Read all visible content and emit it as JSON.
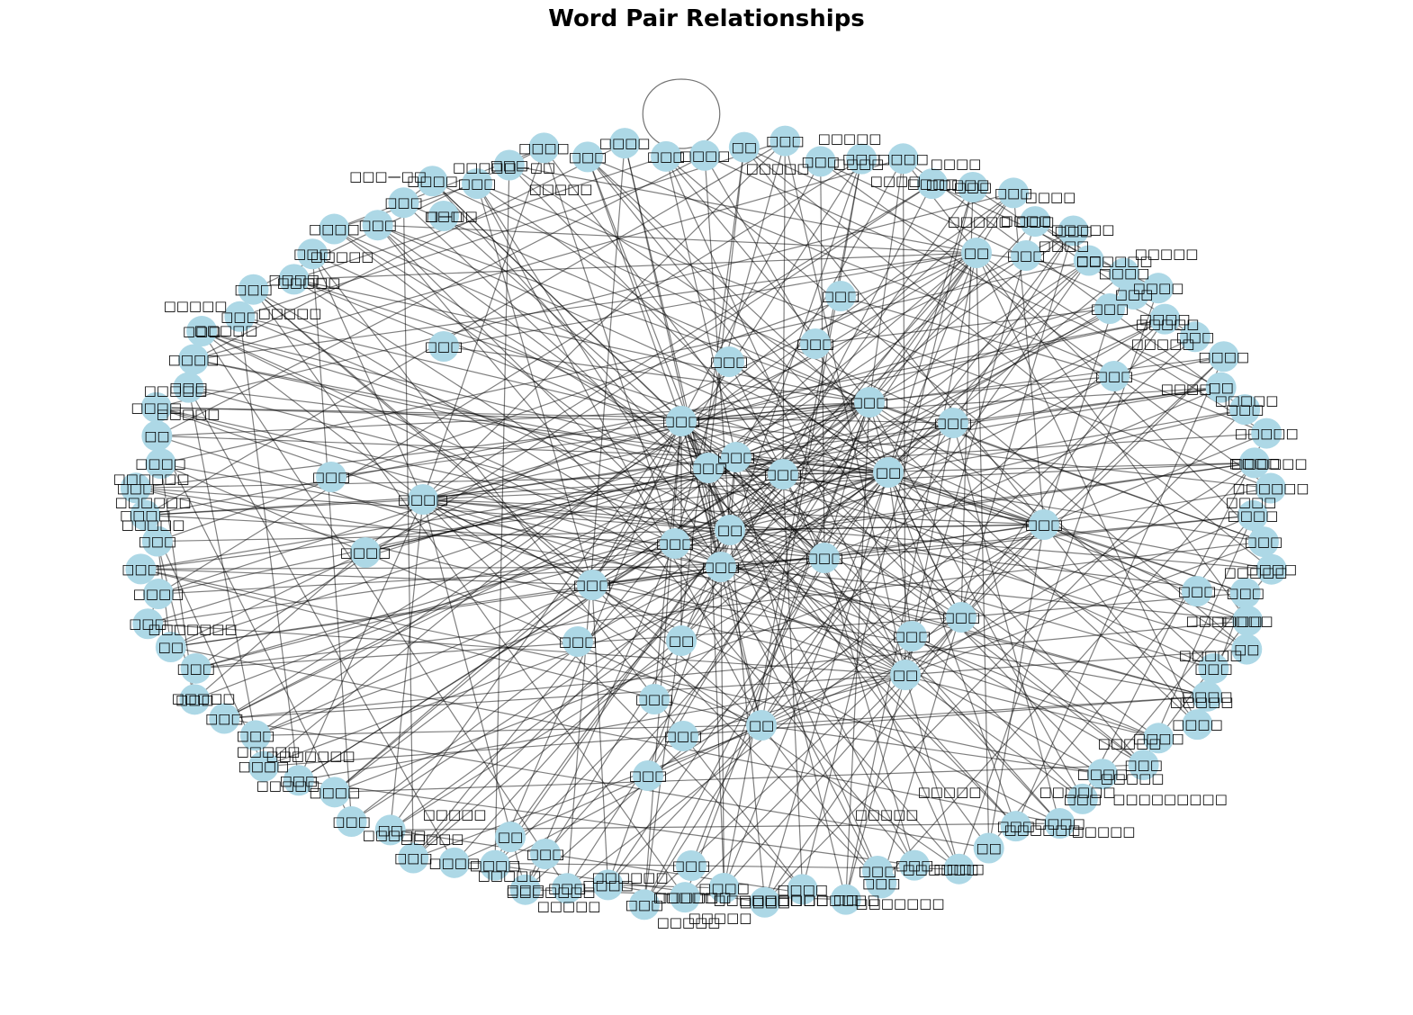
{
  "title": "Word Pair Relationships",
  "node_color": "#add8e6",
  "edge_color": "#000000",
  "labels": {
    "nb0": "□□□□",
    "nb1": "□□",
    "nb2": "□□□",
    "nb3": "□□□",
    "nb4": "□□□",
    "nb5": "□□□□",
    "nb6": "□□□□",
    "nb7": "□□□",
    "nb8": "□□□",
    "nb9": "□□□",
    "nb10": "□□□",
    "nb11": "□□",
    "nb12": "□□□□",
    "nb13": "□□□□",
    "nb14": "□□□□",
    "nb15": "□□□",
    "nb16": "□□□□",
    "nb17": "□□",
    "nb18": "□□□",
    "nb19": "□□□□□",
    "nb20": "□□□□",
    "nb21": "□□□□□□",
    "nb22": "□□□□",
    "nb23": "□□□",
    "nb24": "□□□□",
    "nb25": "□□□",
    "nb26": "□□□□",
    "nb27": "□□",
    "nb28": "□□□",
    "nb29": "□□□□",
    "nb30": "□□□□",
    "nb31": "□□□□",
    "nb32": "□□□",
    "nb33": "□□□□",
    "nb34": "□□□",
    "nb35": "□□□□",
    "nb36": "□□□",
    "nb37": "□□",
    "nb38": "□□□□",
    "nb39": "□□□",
    "nb40": "□□□",
    "nb41": "□□",
    "nb42": "□□□□",
    "nb43": "□□□□",
    "nb44": "□□□□",
    "nb45": "□□□□□",
    "nb46": "□□□",
    "nb47": "□□□□",
    "nb48": "□□□",
    "nb49": "□□□",
    "nb50": "□□□□",
    "nb51": "□□□□",
    "nb52": "□□□",
    "nb53": "□□",
    "nb54": "□□□",
    "nb55": "□□□□",
    "nb56": "□□□",
    "nb57": "□□□□",
    "nb58": "□□□",
    "nb59": "□□□",
    "nb60": "□□□",
    "nb61": "□□□",
    "nb62": "□□",
    "nb63": "□□□",
    "nb64": "□□□□",
    "nb65": "□□□",
    "nb66": "□□□",
    "nb67": "□□□□",
    "nb68": "□□□",
    "nb69": "□□□□",
    "nb70": "□□",
    "nb71": "□□□□",
    "nb72": "□□□",
    "nb73": "□□□□",
    "nb74": "□□□",
    "nb75": "□□□",
    "nb76": "□□□",
    "nb77": "□□□□",
    "nb78": "□□□",
    "nb79": "□□□□",
    "nb80": "□□□",
    "nb81": "□□□",
    "nb82": "□□□□",
    "nb83": "□□□",
    "nb84": "□□□",
    "nb85": "□□□□",
    "nb86": "□□□",
    "nb87": "□□□□",
    "nb88": "□□□",
    "ni0": "□□",
    "ni1": "□□□",
    "ni2": "□□□",
    "ni3": "□□□",
    "ni4": "□□□",
    "ni5": "□□",
    "ni6": "□□□",
    "ni7": "□□□",
    "ni8": "□□□",
    "ni9": "□□□",
    "ni10": "□□□",
    "ni11": "□□□",
    "ni12": "□□",
    "ni13": "□□□□",
    "ni14": "□□□",
    "ni15": "□□□",
    "ni16": "□□□",
    "ni17": "□□",
    "ni18": "□□□",
    "ni19": "□□",
    "ni20": "□□□",
    "ni21": "□□□",
    "ni22": "□□□",
    "ni23": "□□□",
    "ni24": "□□",
    "ni25": "□□□",
    "ni26": "□□□",
    "ni27": "□□□",
    "ni28": "□□□□",
    "ni29": "□□□",
    "ni30": "□□□",
    "ni31": "□□□",
    "ni32": "□□",
    "ni33": "□□□",
    "ni34": "□□□",
    "ni35": "□□□",
    "ni36": "□□□",
    "ni37": "□□□",
    "ni38": "□□□",
    "ni39": "□□□",
    "t0": "□□□□□",
    "t1": "□—□□",
    "t2": "□□□□□—□□",
    "t3": "□□□—□□",
    "t4": "□□□□□",
    "t5": "□□□□",
    "t6": "□□□□□",
    "t7": "□□□□",
    "t8": "□□□□□",
    "t9": "□□□□",
    "t10": "□□□□□",
    "t11": "□□□□",
    "t12": "□□□□",
    "t13": "□□□□",
    "t14": "□□□□□",
    "t15": "□□□□□□",
    "t16": "□□□□□",
    "t17": "□□□□□",
    "t18": "□□□□□",
    "t19": "□□□□",
    "t20": "□□□□□",
    "t21": "□□□□□□",
    "t22": "□□□□",
    "t23": "□□□□□",
    "t24": "□□□□□□",
    "t25": "□□□□□",
    "t26": "□□□□□",
    "t27": "□□□□□",
    "t28": "□□□□□",
    "t29": "□□□□□□□□□",
    "t30": "□□□□□□",
    "t31": "□□□□□",
    "t32": "□□□□□□",
    "t33": "□□□□□",
    "t34": "□□□□□",
    "t35": "□□□□□□",
    "t36": "□□□□□□□",
    "t37": "□□□□□□",
    "t38": "□□□□□□",
    "t39": "□□□□□□□",
    "t40": "□□□□□",
    "t41": "□□□□□",
    "t42": "□□□□□□",
    "t43": "□□□□□□",
    "t44": "□□□□□□□",
    "t45": "□□□□□",
    "t46": "□□□□□",
    "t47": "□□□□□",
    "t48": "□□□□□",
    "t49": "□□□□□",
    "t50": "□□□□□□□",
    "t51": "□□□□□",
    "t52": "□□□□□",
    "t53": "□□□□□",
    "t54": "□□□□□□□",
    "t55": "□□□□□",
    "t56": "□□□□□□",
    "t57": "□□□□□□",
    "t58": "□□□□□",
    "t59": "□□□□□",
    "t60": "□□□□□",
    "t61": "□□□□□",
    "t62": "□□□□□",
    "t63": "□□□□□",
    "t64": "□□□□□"
  },
  "edges": [
    [
      "ni0",
      "ni5"
    ],
    [
      "ni0",
      "ni7"
    ],
    [
      "ni0",
      "ni8"
    ],
    [
      "ni0",
      "ni9"
    ],
    [
      "ni0",
      "ni3"
    ],
    [
      "ni0",
      "ni2"
    ],
    [
      "ni0",
      "ni4"
    ],
    [
      "ni0",
      "ni1"
    ],
    [
      "ni0",
      "ni11"
    ],
    [
      "ni0",
      "ni15"
    ],
    [
      "ni0",
      "ni17"
    ],
    [
      "ni0",
      "ni24"
    ],
    [
      "ni0",
      "ni23"
    ],
    [
      "ni0",
      "ni13"
    ],
    [
      "ni0",
      "ni12"
    ],
    [
      "ni5",
      "ni7"
    ],
    [
      "ni5",
      "ni9"
    ],
    [
      "ni5",
      "ni8"
    ],
    [
      "ni5",
      "ni4"
    ],
    [
      "ni5",
      "ni16"
    ],
    [
      "ni5",
      "ni18"
    ],
    [
      "ni5",
      "ni10"
    ],
    [
      "ni5",
      "ni14"
    ],
    [
      "ni7",
      "ni9"
    ],
    [
      "ni7",
      "ni8"
    ],
    [
      "ni7",
      "ni2"
    ],
    [
      "ni7",
      "ni28"
    ],
    [
      "ni7",
      "ni6"
    ],
    [
      "ni7",
      "ni3"
    ],
    [
      "ni8",
      "ni9"
    ],
    [
      "ni8",
      "ni11"
    ],
    [
      "ni8",
      "ni15"
    ],
    [
      "ni8",
      "ni19"
    ],
    [
      "ni8",
      "ni20"
    ],
    [
      "ni8",
      "ni12"
    ],
    [
      "ni8",
      "ni25"
    ],
    [
      "ni9",
      "ni11"
    ],
    [
      "ni9",
      "ni24"
    ],
    [
      "ni9",
      "ni13"
    ],
    [
      "ni9",
      "ni21"
    ],
    [
      "ni9",
      "ni27"
    ],
    [
      "ni3",
      "ni2"
    ],
    [
      "ni3",
      "ni1"
    ],
    [
      "ni3",
      "ni9"
    ],
    [
      "ni3",
      "ni8"
    ],
    [
      "ni3",
      "ni10"
    ],
    [
      "ni4",
      "ni6"
    ],
    [
      "ni4",
      "ni2"
    ],
    [
      "ni4",
      "ni5"
    ],
    [
      "ni4",
      "ni13"
    ],
    [
      "ni4",
      "ni17"
    ],
    [
      "ni1",
      "ni5"
    ],
    [
      "ni1",
      "ni6"
    ],
    [
      "ni1",
      "ni16"
    ],
    [
      "ni2",
      "ni8"
    ],
    [
      "ni2",
      "ni13"
    ],
    [
      "ni2",
      "ni11"
    ],
    [
      "ni11",
      "ni12"
    ],
    [
      "ni11",
      "ni13"
    ],
    [
      "ni12",
      "ni24"
    ],
    [
      "ni13",
      "ni15"
    ],
    [
      "ni15",
      "ni21"
    ],
    [
      "ni16",
      "ni5"
    ],
    [
      "ni17",
      "ni22"
    ],
    [
      "ni17",
      "ni23"
    ],
    [
      "ni24",
      "ni27"
    ],
    [
      "ni25",
      "ni31"
    ],
    [
      "ni26",
      "ni30"
    ],
    [
      "ni28",
      "ni7"
    ],
    [
      "ni29",
      "ni9"
    ],
    [
      "ni30",
      "ni0"
    ],
    [
      "ni31",
      "ni8"
    ],
    [
      "ni32",
      "ni0"
    ],
    [
      "ni33",
      "ni5"
    ],
    [
      "ni34",
      "ni9"
    ],
    [
      "ni35",
      "ni8"
    ],
    [
      "ni36",
      "ni7"
    ],
    [
      "ni37",
      "ni4"
    ],
    [
      "ni38",
      "ni3"
    ],
    [
      "ni39",
      "ni5"
    ]
  ]
}
